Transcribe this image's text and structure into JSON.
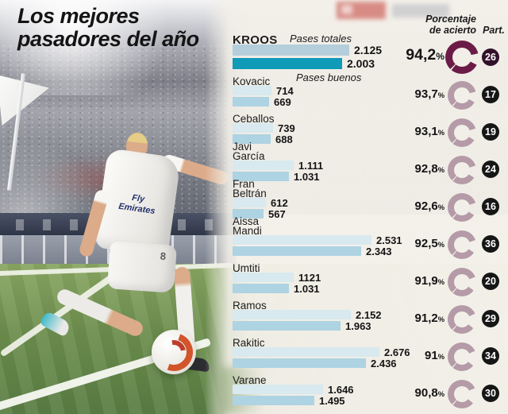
{
  "title": {
    "line1": "Los mejores",
    "line2": "pasadores del año"
  },
  "table_headers": {
    "accuracy_l1": "Porcentaje",
    "accuracy_l2": "de acierto",
    "participation": "Part."
  },
  "legend": {
    "total_label": "Pases totales",
    "good_label": "Pases buenos"
  },
  "photo": {
    "shirt_line1": "Fly",
    "shirt_line2": "Emirates",
    "shorts_number": "8"
  },
  "colors": {
    "bar_total": "#d8e9ef",
    "bar_good": "#aed3e2",
    "bar_total_hl": "#b4cedb",
    "bar_good_hl": "#0f9ab8",
    "donut": "#b49ba7",
    "donut_hl": "#6b1c46",
    "badge_bg": "#161616",
    "badge_bg_hl": "#33102a",
    "panel_bg": "#f2efe9"
  },
  "chart_data": {
    "type": "bar",
    "orientation": "horizontal",
    "title": "Los mejores pasadores del año",
    "series": [
      "Pases totales",
      "Pases buenos"
    ],
    "columns": [
      "Porcentaje de acierto",
      "Part."
    ],
    "max_value": 2676,
    "players": [
      {
        "name_lines": [
          "KROOS"
        ],
        "total": 2125,
        "total_label": "2.125",
        "good": 2003,
        "good_label": "2.003",
        "accuracy": 94.2,
        "accuracy_label": "94,2",
        "part": "26",
        "highlight": true
      },
      {
        "name_lines": [
          "Kovacic"
        ],
        "total": 714,
        "total_label": "714",
        "good": 669,
        "good_label": "669",
        "accuracy": 93.7,
        "accuracy_label": "93,7",
        "part": "17",
        "highlight": false
      },
      {
        "name_lines": [
          "Ceballos"
        ],
        "total": 739,
        "total_label": "739",
        "good": 688,
        "good_label": "688",
        "accuracy": 93.1,
        "accuracy_label": "93,1",
        "part": "19",
        "highlight": false
      },
      {
        "name_lines": [
          "Javi",
          "García"
        ],
        "total": 1111,
        "total_label": "1.111",
        "good": 1031,
        "good_label": "1.031",
        "accuracy": 92.8,
        "accuracy_label": "92,8",
        "part": "24",
        "highlight": false
      },
      {
        "name_lines": [
          "Fran",
          "Beltrán"
        ],
        "total": 612,
        "total_label": "612",
        "good": 567,
        "good_label": "567",
        "accuracy": 92.6,
        "accuracy_label": "92,6",
        "part": "16",
        "highlight": false
      },
      {
        "name_lines": [
          "Aissa",
          "Mandi"
        ],
        "total": 2531,
        "total_label": "2.531",
        "good": 2343,
        "good_label": "2.343",
        "accuracy": 92.5,
        "accuracy_label": "92,5",
        "part": "36",
        "highlight": false
      },
      {
        "name_lines": [
          "Umtiti"
        ],
        "total": 1121,
        "total_label": "1121",
        "good": 1031,
        "good_label": "1.031",
        "accuracy": 91.9,
        "accuracy_label": "91,9",
        "part": "20",
        "highlight": false
      },
      {
        "name_lines": [
          "Ramos"
        ],
        "total": 2152,
        "total_label": "2.152",
        "good": 1963,
        "good_label": "1.963",
        "accuracy": 91.2,
        "accuracy_label": "91,2",
        "part": "29",
        "highlight": false
      },
      {
        "name_lines": [
          "Rakitic"
        ],
        "total": 2676,
        "total_label": "2.676",
        "good": 2436,
        "good_label": "2.436",
        "accuracy": 91.0,
        "accuracy_label": "91",
        "part": "34",
        "highlight": false
      },
      {
        "name_lines": [
          "Varane"
        ],
        "total": 1646,
        "total_label": "1.646",
        "good": 1495,
        "good_label": "1.495",
        "accuracy": 90.8,
        "accuracy_label": "90,8",
        "part": "30",
        "highlight": false
      }
    ]
  }
}
